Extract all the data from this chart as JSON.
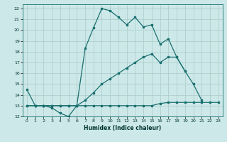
{
  "xlabel": "Humidex (Indice chaleur)",
  "xlim": [
    -0.5,
    23.5
  ],
  "ylim": [
    12,
    22.4
  ],
  "xticks": [
    0,
    1,
    2,
    3,
    4,
    5,
    6,
    7,
    8,
    9,
    10,
    11,
    12,
    13,
    14,
    15,
    16,
    17,
    18,
    19,
    20,
    21,
    22,
    23
  ],
  "yticks": [
    12,
    13,
    14,
    15,
    16,
    17,
    18,
    19,
    20,
    21,
    22
  ],
  "bg_color": "#cde8e8",
  "grid_color": "#aecfcf",
  "line_color": "#1a7070",
  "curves": [
    {
      "x": [
        0,
        1,
        2,
        3,
        4,
        5,
        6,
        7,
        8,
        9,
        10,
        11,
        12,
        13,
        14,
        15,
        16,
        17,
        18,
        19,
        20,
        21,
        22,
        23
      ],
      "y": [
        14.5,
        13.0,
        13.0,
        12.8,
        12.3,
        12.0,
        13.0,
        18.3,
        20.2,
        22.0,
        21.8,
        21.2,
        20.5,
        21.2,
        20.3,
        20.5,
        18.7,
        19.2,
        17.5,
        16.2,
        15.0,
        13.5,
        null,
        null
      ]
    },
    {
      "x": [
        0,
        1,
        2,
        3,
        4,
        5,
        6,
        7,
        8,
        9,
        10,
        11,
        12,
        13,
        14,
        15,
        16,
        17,
        18,
        19,
        20,
        21,
        22,
        23
      ],
      "y": [
        13.0,
        13.0,
        13.0,
        13.0,
        13.0,
        13.0,
        13.0,
        13.0,
        13.0,
        13.0,
        13.0,
        13.0,
        13.0,
        13.0,
        13.0,
        13.0,
        13.2,
        13.3,
        13.3,
        13.3,
        13.3,
        13.3,
        13.3,
        13.3
      ]
    },
    {
      "x": [
        0,
        1,
        2,
        3,
        4,
        5,
        6,
        7,
        8,
        9,
        10,
        11,
        12,
        13,
        14,
        15,
        16,
        17,
        18,
        19,
        20,
        21,
        22,
        23
      ],
      "y": [
        13.0,
        13.0,
        13.0,
        13.0,
        13.0,
        13.0,
        13.0,
        13.5,
        14.2,
        15.0,
        15.5,
        16.0,
        16.5,
        17.0,
        17.5,
        17.8,
        17.0,
        17.5,
        17.5,
        16.2,
        null,
        null,
        null,
        null
      ]
    }
  ]
}
